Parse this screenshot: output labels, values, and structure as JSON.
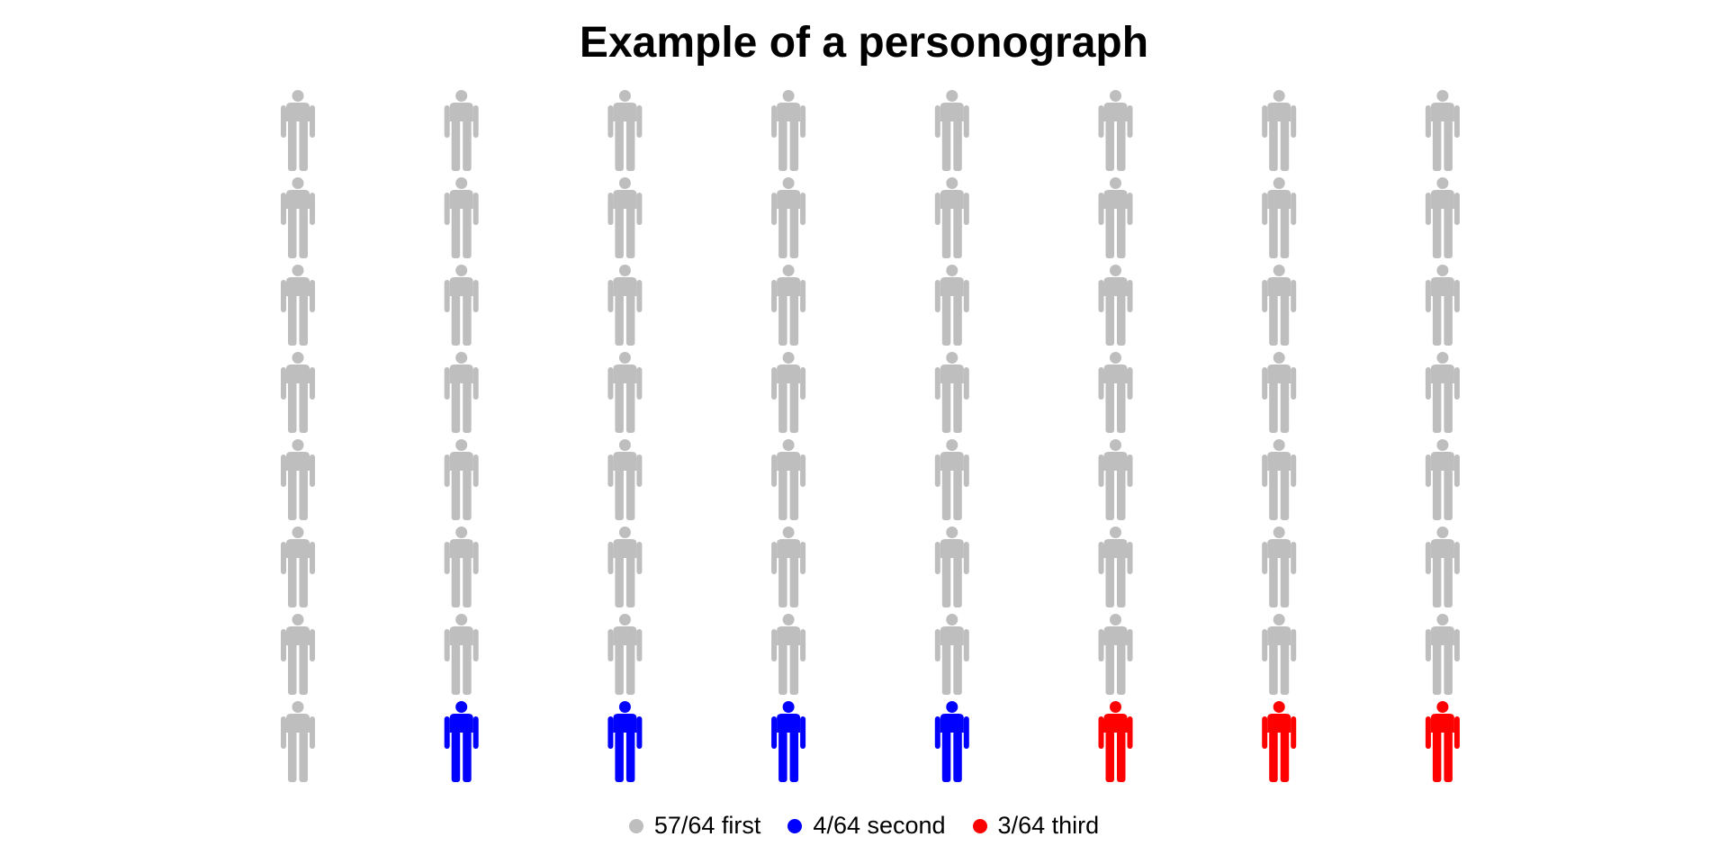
{
  "chart_data": {
    "type": "pictograph",
    "title": "Example of a personograph",
    "grid": false,
    "icon": "person-icon",
    "rows": 8,
    "columns": 8,
    "total": 64,
    "legend_position": "bottom",
    "series": [
      {
        "name": "first",
        "count": 57,
        "label": "57/64 first",
        "color": "#bebebe"
      },
      {
        "name": "second",
        "count": 4,
        "label": "4/64 second",
        "color": "#0000ff"
      },
      {
        "name": "third",
        "count": 3,
        "label": "3/64 third",
        "color": "#ff0000"
      }
    ]
  }
}
